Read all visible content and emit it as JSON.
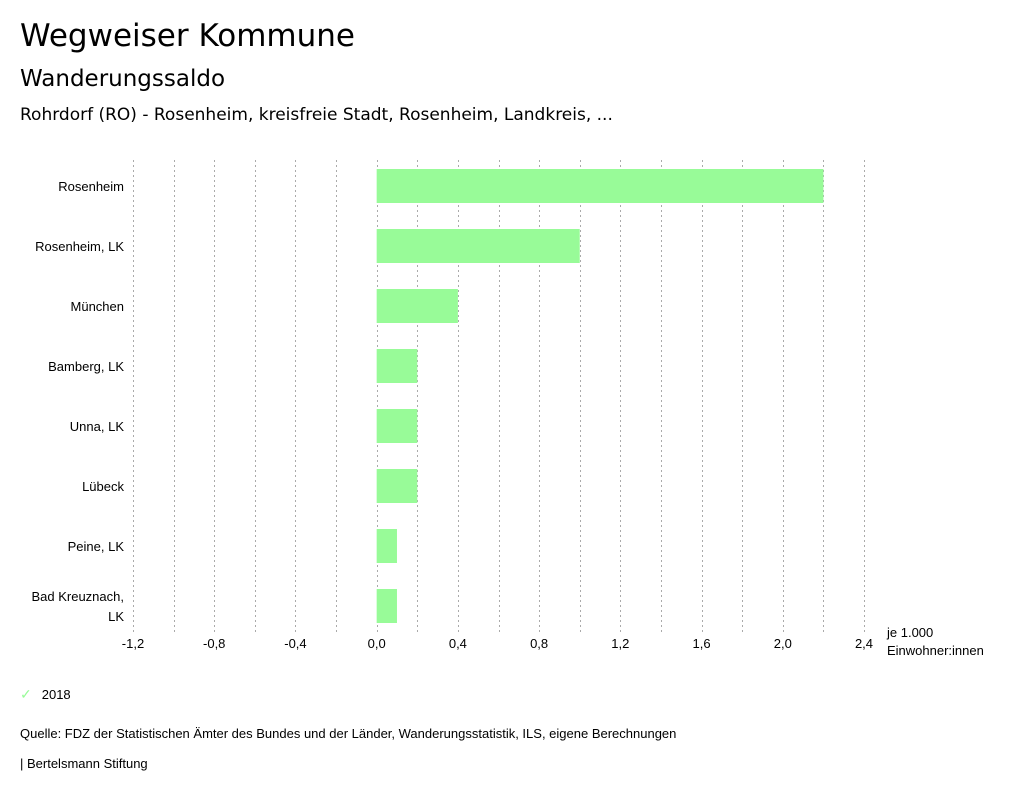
{
  "header": {
    "title": "Wegweiser Kommune",
    "subtitle": "Wanderungssaldo",
    "region": "Rohrdorf (RO) - Rosenheim, kreisfreie Stadt, Rosenheim, Landkreis, ..."
  },
  "chart_data": {
    "type": "bar",
    "orientation": "horizontal",
    "categories": [
      [
        "Rosenheim"
      ],
      [
        "Rosenheim, LK"
      ],
      [
        "München"
      ],
      [
        "Bamberg, LK"
      ],
      [
        "Unna, LK"
      ],
      [
        "Lübeck"
      ],
      [
        "Peine, LK"
      ],
      [
        "Bad Kreuznach,",
        "LK"
      ]
    ],
    "series": [
      {
        "name": "2018",
        "values": [
          2.2,
          1.0,
          0.4,
          0.2,
          0.2,
          0.2,
          0.1,
          0.1
        ],
        "color": "#98fb98"
      }
    ],
    "xlim": [
      -1.2,
      2.4
    ],
    "ticks": [
      "-1,2",
      "-0,8",
      "-0,4",
      "0,0",
      "0,4",
      "0,8",
      "1,2",
      "1,6",
      "2,0",
      "2,4"
    ],
    "xlabel": [
      "je 1.000",
      "Einwohner:innen"
    ],
    "grid": true,
    "legend": "bottom-left"
  },
  "legend": {
    "label": "2018"
  },
  "source": "Quelle: FDZ der Statistischen Ämter des Bundes und der Länder, Wanderungsstatistik, ILS, eigene Berechnungen",
  "brand": "| Bertelsmann Stiftung"
}
